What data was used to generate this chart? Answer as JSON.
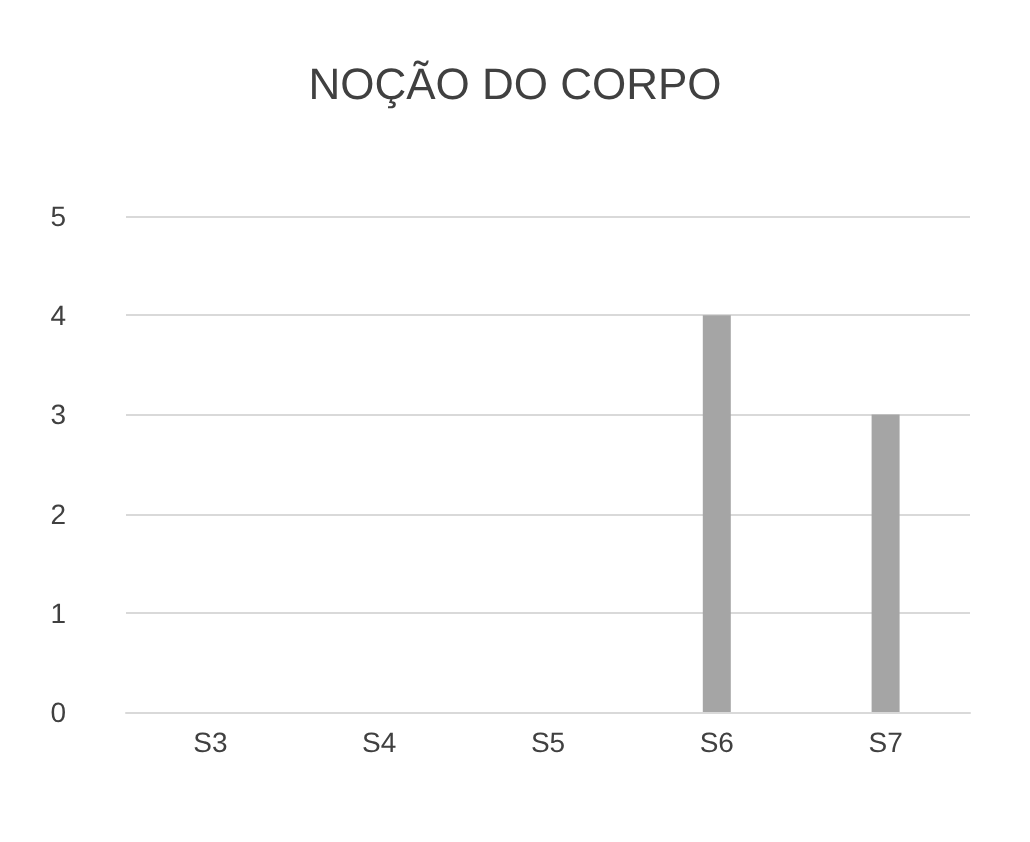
{
  "chart_data": {
    "type": "bar",
    "title": "NOÇÃO DO CORPO",
    "categories": [
      "S3",
      "S4",
      "S5",
      "S6",
      "S7"
    ],
    "values": [
      0,
      0,
      0,
      4,
      3
    ],
    "color": "#a5a5a5",
    "ylim": [
      0,
      5
    ],
    "yticks": [
      0,
      1,
      2,
      3,
      4,
      5
    ],
    "grid": "y"
  }
}
